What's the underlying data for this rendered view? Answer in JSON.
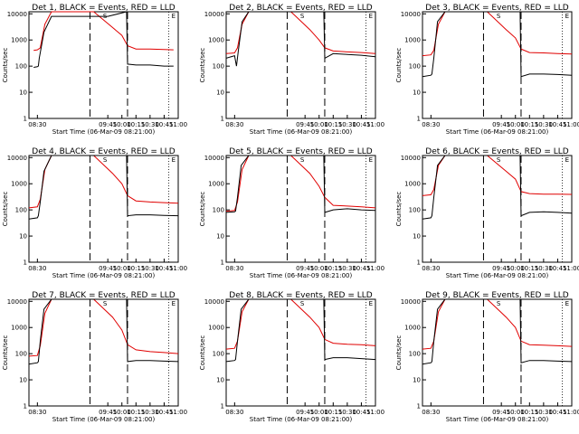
{
  "colors": {
    "events": "#000000",
    "lld": "#e00000",
    "axes": "#000000",
    "background": "#ffffff"
  },
  "shared": {
    "xlabel": "Start Time (06-Mar-09 08:21:00)",
    "ylabel": "Counts/sec",
    "x_ticks": [
      "08:30",
      "09:45",
      "10:00",
      "10:15",
      "10:30",
      "10:45",
      "11:00"
    ],
    "y_ticks": [
      "1",
      "10",
      "100",
      "1000",
      "10000"
    ],
    "markers": [
      "S",
      "E"
    ]
  },
  "chart_data": [
    {
      "type": "line",
      "title": "Det 1, BLACK = Events, RED = LLD",
      "xlabel": "Start Time (06-Mar-09 08:21:00)",
      "ylabel": "Counts/sec",
      "ylog": true,
      "ylim": [
        1,
        12000
      ],
      "xlim": [
        "08:21",
        "11:00"
      ],
      "series": [
        {
          "name": "Events",
          "color": "#000000",
          "x": [
            "08:26",
            "08:30",
            "08:31",
            "08:32",
            "08:37",
            "08:45",
            "09:00",
            "09:45",
            "10:05",
            "10:06",
            "10:15",
            "10:30",
            "10:45",
            "10:55"
          ],
          "y": [
            90,
            95,
            100,
            200,
            2000,
            8000,
            8000,
            8000,
            12000,
            120,
            110,
            110,
            100,
            100
          ]
        },
        {
          "name": "LLD",
          "color": "#e00000",
          "x": [
            "08:26",
            "08:30",
            "08:33",
            "08:38",
            "08:45",
            "09:00",
            "09:30",
            "09:50",
            "10:00",
            "10:06",
            "10:15",
            "10:30",
            "10:45",
            "10:55"
          ],
          "y": [
            400,
            420,
            500,
            4000,
            12000,
            12000,
            12000,
            3000,
            1500,
            600,
            450,
            450,
            430,
            420
          ]
        }
      ]
    },
    {
      "type": "line",
      "title": "Det 2, BLACK = Events, RED = LLD",
      "xlabel": "Start Time (06-Mar-09 08:21:00)",
      "ylabel": "Counts/sec",
      "ylog": true,
      "ylim": [
        1,
        12000
      ],
      "xlim": [
        "08:21",
        "11:00"
      ],
      "series": [
        {
          "name": "Events",
          "color": "#000000",
          "x": [
            "08:21",
            "08:30",
            "08:32",
            "08:34",
            "08:38",
            "08:45",
            "09:00",
            "09:45",
            "10:05",
            "10:06",
            "10:15",
            "10:30",
            "10:45",
            "11:00"
          ],
          "y": [
            200,
            250,
            100,
            400,
            5000,
            12000,
            12000,
            12000,
            12000,
            200,
            300,
            280,
            260,
            230
          ]
        },
        {
          "name": "LLD",
          "color": "#e00000",
          "x": [
            "08:21",
            "08:30",
            "08:33",
            "08:38",
            "08:45",
            "09:00",
            "09:30",
            "09:50",
            "10:00",
            "10:06",
            "10:15",
            "10:30",
            "10:45",
            "11:00"
          ],
          "y": [
            300,
            320,
            500,
            4000,
            12000,
            12000,
            12000,
            2500,
            1000,
            500,
            380,
            350,
            330,
            300
          ]
        }
      ]
    },
    {
      "type": "line",
      "title": "Det 3, BLACK = Events, RED = LLD",
      "xlabel": "Start Time (06-Mar-09 08:21:00)",
      "ylabel": "Counts/sec",
      "ylog": true,
      "ylim": [
        1,
        12000
      ],
      "xlim": [
        "08:21",
        "11:00"
      ],
      "series": [
        {
          "name": "Events",
          "color": "#000000",
          "x": [
            "08:21",
            "08:30",
            "08:31",
            "08:33",
            "08:37",
            "08:45",
            "09:00",
            "09:45",
            "10:05",
            "10:06",
            "10:15",
            "10:30",
            "10:45",
            "11:00"
          ],
          "y": [
            40,
            45,
            50,
            200,
            5000,
            12000,
            12000,
            12000,
            12000,
            40,
            50,
            50,
            48,
            45
          ]
        },
        {
          "name": "LLD",
          "color": "#e00000",
          "x": [
            "08:21",
            "08:30",
            "08:33",
            "08:38",
            "08:45",
            "09:00",
            "09:30",
            "09:50",
            "10:00",
            "10:06",
            "10:15",
            "10:30",
            "10:45",
            "11:00"
          ],
          "y": [
            250,
            270,
            400,
            4000,
            12000,
            12000,
            12000,
            2500,
            1200,
            450,
            330,
            320,
            300,
            290
          ]
        }
      ]
    },
    {
      "type": "line",
      "title": "Det 4, BLACK = Events, RED = LLD",
      "xlabel": "Start Time (06-Mar-09 08:21:00)",
      "ylabel": "Counts/sec",
      "ylog": true,
      "ylim": [
        1,
        12000
      ],
      "xlim": [
        "08:21",
        "11:00"
      ],
      "series": [
        {
          "name": "Events",
          "color": "#000000",
          "x": [
            "08:21",
            "08:30",
            "08:31",
            "08:33",
            "08:37",
            "08:45",
            "09:00",
            "09:45",
            "10:05",
            "10:06",
            "10:15",
            "10:30",
            "10:45",
            "11:00"
          ],
          "y": [
            45,
            50,
            60,
            200,
            3000,
            12000,
            12000,
            12000,
            12000,
            60,
            65,
            65,
            62,
            60
          ]
        },
        {
          "name": "LLD",
          "color": "#e00000",
          "x": [
            "08:21",
            "08:30",
            "08:33",
            "08:38",
            "08:45",
            "09:00",
            "09:30",
            "09:50",
            "10:00",
            "10:06",
            "10:15",
            "10:30",
            "10:45",
            "11:00"
          ],
          "y": [
            120,
            130,
            250,
            3500,
            12000,
            12000,
            12000,
            2500,
            1000,
            350,
            220,
            200,
            190,
            180
          ]
        }
      ]
    },
    {
      "type": "line",
      "title": "Det 5, BLACK = Events, RED = LLD",
      "xlabel": "Start Time (06-Mar-09 08:21:00)",
      "ylabel": "Counts/sec",
      "ylog": true,
      "ylim": [
        1,
        12000
      ],
      "xlim": [
        "08:21",
        "11:00"
      ],
      "series": [
        {
          "name": "Events",
          "color": "#000000",
          "x": [
            "08:21",
            "08:30",
            "08:31",
            "08:33",
            "08:37",
            "08:45",
            "09:00",
            "09:45",
            "10:05",
            "10:06",
            "10:15",
            "10:30",
            "10:45",
            "11:00"
          ],
          "y": [
            80,
            85,
            90,
            300,
            5000,
            12000,
            12000,
            12000,
            12000,
            80,
            100,
            110,
            100,
            95
          ]
        },
        {
          "name": "LLD",
          "color": "#e00000",
          "x": [
            "08:21",
            "08:30",
            "08:33",
            "08:38",
            "08:45",
            "09:00",
            "09:30",
            "09:50",
            "10:00",
            "10:06",
            "10:15",
            "10:30",
            "10:45",
            "11:00"
          ],
          "y": [
            90,
            95,
            200,
            3500,
            12000,
            12000,
            12000,
            2500,
            800,
            300,
            150,
            140,
            130,
            120
          ]
        }
      ]
    },
    {
      "type": "line",
      "title": "Det 6, BLACK = Events, RED = LLD",
      "xlabel": "Start Time (06-Mar-09 08:21:00)",
      "ylabel": "Counts/sec",
      "ylog": true,
      "ylim": [
        1,
        12000
      ],
      "xlim": [
        "08:21",
        "11:00"
      ],
      "series": [
        {
          "name": "Events",
          "color": "#000000",
          "x": [
            "08:21",
            "08:30",
            "08:31",
            "08:33",
            "08:37",
            "08:45",
            "09:00",
            "09:45",
            "10:05",
            "10:06",
            "10:15",
            "10:30",
            "10:45",
            "11:00"
          ],
          "y": [
            45,
            50,
            60,
            300,
            5000,
            12000,
            12000,
            12000,
            12000,
            60,
            80,
            85,
            80,
            75
          ]
        },
        {
          "name": "LLD",
          "color": "#e00000",
          "x": [
            "08:21",
            "08:30",
            "08:33",
            "08:38",
            "08:45",
            "09:00",
            "09:30",
            "09:50",
            "10:00",
            "10:06",
            "10:15",
            "10:30",
            "10:45",
            "11:00"
          ],
          "y": [
            350,
            380,
            600,
            5000,
            12000,
            12000,
            12000,
            3000,
            1500,
            500,
            420,
            400,
            400,
            390
          ]
        }
      ]
    },
    {
      "type": "line",
      "title": "Det 7, BLACK = Events, RED = LLD",
      "xlabel": "Start Time (06-Mar-09 08:21:00)",
      "ylabel": "Counts/sec",
      "ylog": true,
      "ylim": [
        1,
        12000
      ],
      "xlim": [
        "08:21",
        "11:00"
      ],
      "series": [
        {
          "name": "Events",
          "color": "#000000",
          "x": [
            "08:21",
            "08:30",
            "08:31",
            "08:33",
            "08:37",
            "08:45",
            "09:00",
            "09:45",
            "10:05",
            "10:06",
            "10:15",
            "10:30",
            "10:45",
            "11:00"
          ],
          "y": [
            40,
            45,
            50,
            300,
            5000,
            12000,
            12000,
            12000,
            12000,
            50,
            55,
            55,
            52,
            50
          ]
        },
        {
          "name": "LLD",
          "color": "#e00000",
          "x": [
            "08:21",
            "08:30",
            "08:33",
            "08:38",
            "08:45",
            "09:00",
            "09:30",
            "09:50",
            "10:00",
            "10:06",
            "10:15",
            "10:30",
            "10:45",
            "11:00"
          ],
          "y": [
            80,
            85,
            200,
            3500,
            12000,
            12000,
            12000,
            2500,
            800,
            220,
            140,
            120,
            110,
            100
          ]
        }
      ]
    },
    {
      "type": "line",
      "title": "Det 8, BLACK = Events, RED = LLD",
      "xlabel": "Start Time (06-Mar-09 08:21:00)",
      "ylabel": "Counts/sec",
      "ylog": true,
      "ylim": [
        1,
        12000
      ],
      "xlim": [
        "08:21",
        "11:00"
      ],
      "series": [
        {
          "name": "Events",
          "color": "#000000",
          "x": [
            "08:21",
            "08:30",
            "08:31",
            "08:33",
            "08:37",
            "08:45",
            "09:00",
            "09:45",
            "10:05",
            "10:06",
            "10:15",
            "10:30",
            "10:45",
            "11:00"
          ],
          "y": [
            50,
            55,
            60,
            300,
            5000,
            12000,
            12000,
            12000,
            12000,
            60,
            70,
            70,
            65,
            60
          ]
        },
        {
          "name": "LLD",
          "color": "#e00000",
          "x": [
            "08:21",
            "08:30",
            "08:33",
            "08:38",
            "08:45",
            "09:00",
            "09:30",
            "09:50",
            "10:00",
            "10:06",
            "10:15",
            "10:30",
            "10:45",
            "11:00"
          ],
          "y": [
            150,
            160,
            300,
            4000,
            12000,
            12000,
            12000,
            2500,
            1000,
            350,
            250,
            230,
            220,
            200
          ]
        }
      ]
    },
    {
      "type": "line",
      "title": "Det 9, BLACK = Events, RED = LLD",
      "xlabel": "Start Time (06-Mar-09 08:21:00)",
      "ylabel": "Counts/sec",
      "ylog": true,
      "ylim": [
        1,
        12000
      ],
      "xlim": [
        "08:21",
        "11:00"
      ],
      "series": [
        {
          "name": "Events",
          "color": "#000000",
          "x": [
            "08:21",
            "08:30",
            "08:31",
            "08:33",
            "08:37",
            "08:45",
            "09:00",
            "09:45",
            "10:05",
            "10:06",
            "10:15",
            "10:30",
            "10:45",
            "11:00"
          ],
          "y": [
            40,
            45,
            50,
            300,
            5000,
            12000,
            12000,
            12000,
            12000,
            45,
            55,
            55,
            52,
            50
          ]
        },
        {
          "name": "LLD",
          "color": "#e00000",
          "x": [
            "08:21",
            "08:30",
            "08:33",
            "08:38",
            "08:45",
            "09:00",
            "09:30",
            "09:50",
            "10:00",
            "10:06",
            "10:15",
            "10:30",
            "10:45",
            "11:00"
          ],
          "y": [
            150,
            160,
            300,
            4000,
            12000,
            12000,
            12000,
            2500,
            1000,
            300,
            220,
            210,
            200,
            190
          ]
        }
      ]
    }
  ]
}
